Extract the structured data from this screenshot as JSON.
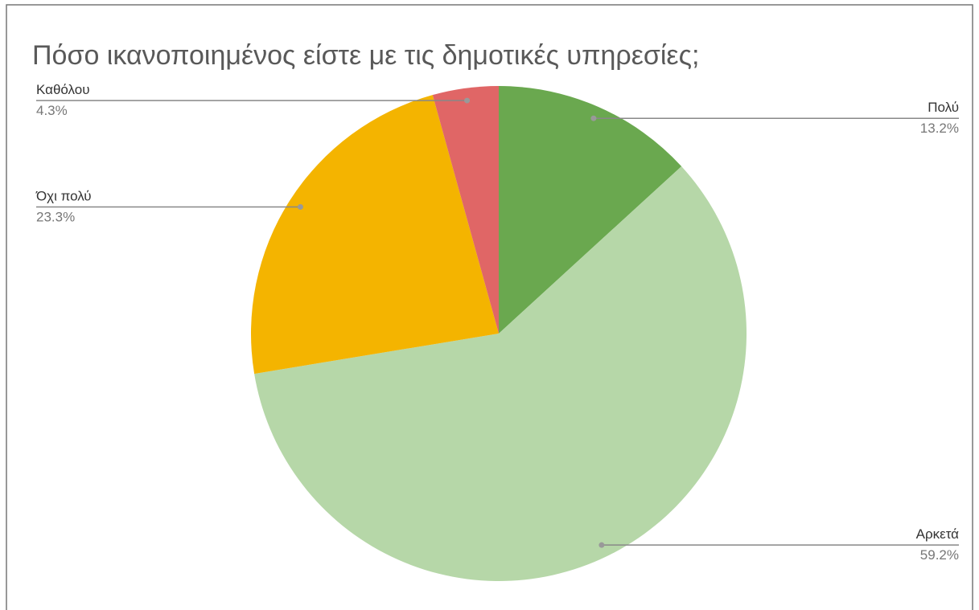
{
  "chart_data": {
    "type": "pie",
    "title": "Πόσο ικανοποιημένος είστε με τις δημοτικές υπηρεσίες;",
    "categories": [
      "Πολύ",
      "Αρκετά",
      "Όχι πολύ",
      "Καθόλου"
    ],
    "values": [
      13.2,
      59.2,
      23.3,
      4.3
    ],
    "value_labels": [
      "13.2%",
      "59.2%",
      "23.3%",
      "4.3%"
    ],
    "colors": [
      "#6aa84f",
      "#b6d7a8",
      "#f4b400",
      "#e06666"
    ]
  }
}
